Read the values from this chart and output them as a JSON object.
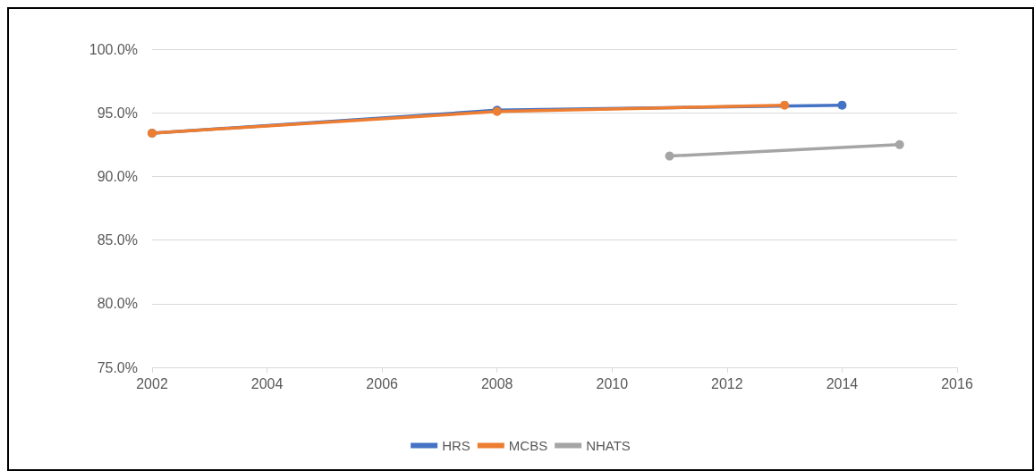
{
  "chart_data": {
    "type": "line",
    "xlim": [
      2002,
      2016
    ],
    "xticks": [
      2002,
      2004,
      2006,
      2008,
      2010,
      2012,
      2014,
      2016
    ],
    "ylim": [
      75,
      100
    ],
    "yticks": [
      {
        "value": 75,
        "label": "75.0%"
      },
      {
        "value": 80,
        "label": "80.0%"
      },
      {
        "value": 85,
        "label": "85.0%"
      },
      {
        "value": 90,
        "label": "90.0%"
      },
      {
        "value": 95,
        "label": "95.0%"
      },
      {
        "value": 100,
        "label": "100.0%"
      }
    ],
    "grid": "y",
    "legend": "bottom",
    "marker": "circle",
    "line_style": "solid",
    "series": [
      {
        "name": "HRS",
        "color": "#4472c4",
        "x": [
          2002,
          2008,
          2014
        ],
        "values": [
          93.4,
          95.2,
          95.6
        ]
      },
      {
        "name": "MCBS",
        "color": "#ed7d31",
        "x": [
          2002,
          2008,
          2013
        ],
        "values": [
          93.4,
          95.1,
          95.6
        ]
      },
      {
        "name": "NHATS",
        "color": "#a5a5a5",
        "x": [
          2011,
          2015
        ],
        "values": [
          91.6,
          92.5
        ]
      }
    ]
  }
}
